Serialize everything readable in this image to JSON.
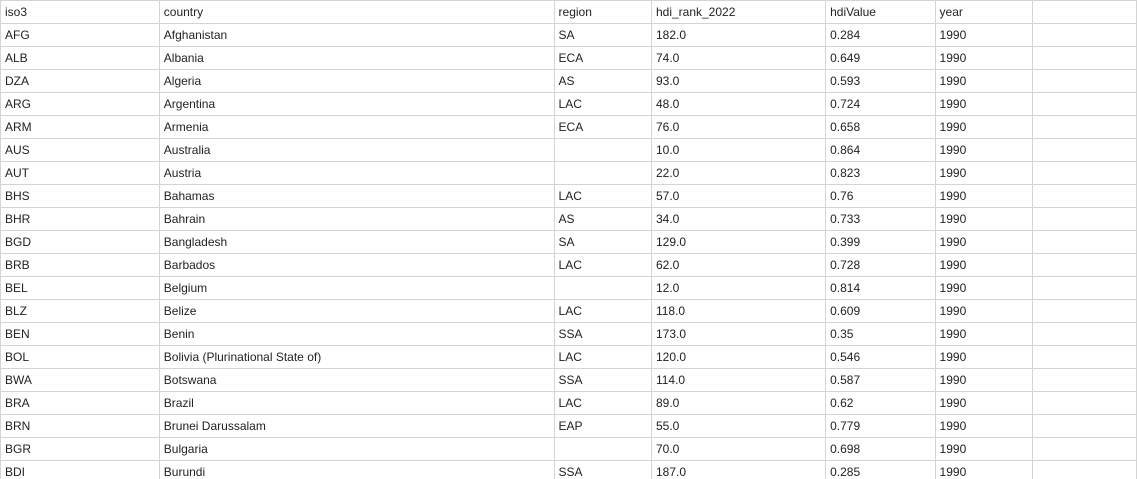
{
  "columns": [
    "iso3",
    "country",
    "region",
    "hdi_rank_2022",
    "hdiValue",
    "year",
    ""
  ],
  "rows": [
    [
      "AFG",
      "Afghanistan",
      "SA",
      "182.0",
      "0.284",
      "1990",
      ""
    ],
    [
      "ALB",
      "Albania",
      "ECA",
      "74.0",
      "0.649",
      "1990",
      ""
    ],
    [
      "DZA",
      "Algeria",
      "AS",
      "93.0",
      "0.593",
      "1990",
      ""
    ],
    [
      "ARG",
      "Argentina",
      "LAC",
      "48.0",
      "0.724",
      "1990",
      ""
    ],
    [
      "ARM",
      "Armenia",
      "ECA",
      "76.0",
      "0.658",
      "1990",
      ""
    ],
    [
      "AUS",
      "Australia",
      "",
      "10.0",
      "0.864",
      "1990",
      ""
    ],
    [
      "AUT",
      "Austria",
      "",
      "22.0",
      "0.823",
      "1990",
      ""
    ],
    [
      "BHS",
      "Bahamas",
      "LAC",
      "57.0",
      "0.76",
      "1990",
      ""
    ],
    [
      "BHR",
      "Bahrain",
      "AS",
      "34.0",
      "0.733",
      "1990",
      ""
    ],
    [
      "BGD",
      "Bangladesh",
      "SA",
      "129.0",
      "0.399",
      "1990",
      ""
    ],
    [
      "BRB",
      "Barbados",
      "LAC",
      "62.0",
      "0.728",
      "1990",
      ""
    ],
    [
      "BEL",
      "Belgium",
      "",
      "12.0",
      "0.814",
      "1990",
      ""
    ],
    [
      "BLZ",
      "Belize",
      "LAC",
      "118.0",
      "0.609",
      "1990",
      ""
    ],
    [
      "BEN",
      "Benin",
      "SSA",
      "173.0",
      "0.35",
      "1990",
      ""
    ],
    [
      "BOL",
      "Bolivia (Plurinational State of)",
      "LAC",
      "120.0",
      "0.546",
      "1990",
      ""
    ],
    [
      "BWA",
      "Botswana",
      "SSA",
      "114.0",
      "0.587",
      "1990",
      ""
    ],
    [
      "BRA",
      "Brazil",
      "LAC",
      "89.0",
      "0.62",
      "1990",
      ""
    ],
    [
      "BRN",
      "Brunei Darussalam",
      "EAP",
      "55.0",
      "0.779",
      "1990",
      ""
    ],
    [
      "BGR",
      "Bulgaria",
      "",
      "70.0",
      "0.698",
      "1990",
      ""
    ],
    [
      "BDI",
      "Burundi",
      "SSA",
      "187.0",
      "0.285",
      "1990",
      ""
    ]
  ]
}
